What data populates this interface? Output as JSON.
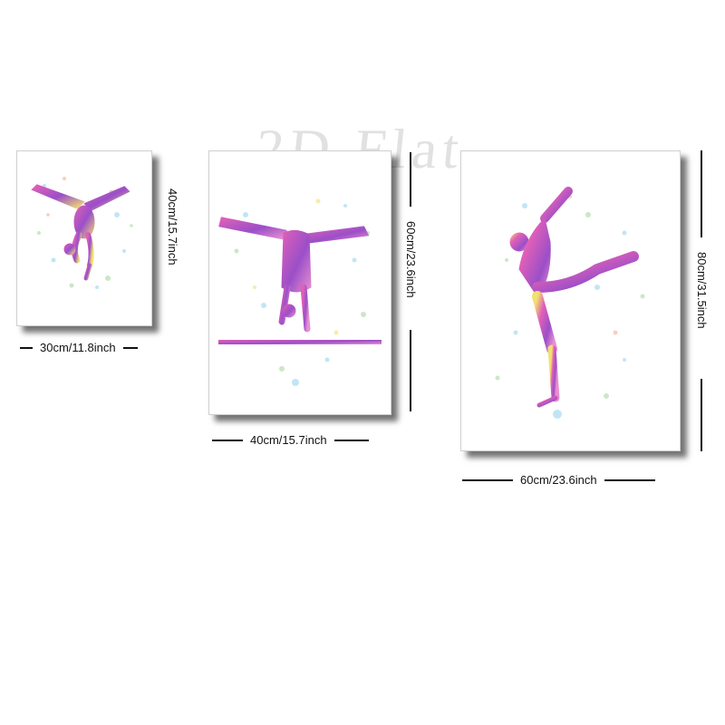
{
  "watermark": "2D Flat",
  "colors": {
    "pink": "#e060b8",
    "purple": "#9b4fc8",
    "violet": "#7d3fb0",
    "yellow": "#f2e070",
    "blue": "#8fd0ee",
    "green": "#a8d8a0",
    "shadow": "#1a1a1a"
  },
  "posters": [
    {
      "name": "small",
      "width_label": "30cm/11.8inch",
      "height_label": "40cm/15.7inch",
      "figure": "gymnast-handstand-split-icon"
    },
    {
      "name": "medium",
      "width_label": "40cm/15.7inch",
      "height_label": "60cm/23.6inch",
      "figure": "gymnast-balance-beam-icon"
    },
    {
      "name": "large",
      "width_label": "60cm/23.6inch",
      "height_label": "80cm/31.5inch",
      "figure": "gymnast-leg-hold-icon"
    }
  ]
}
